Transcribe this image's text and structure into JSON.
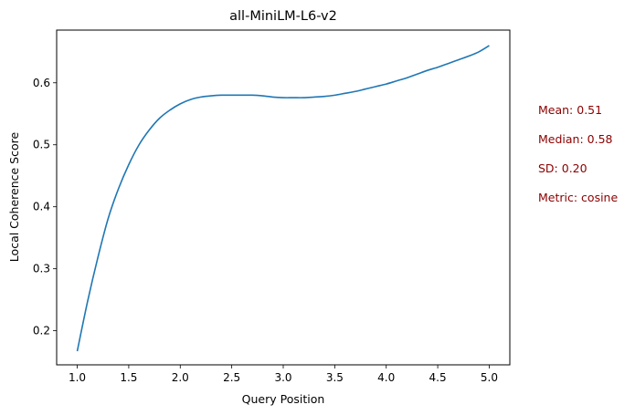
{
  "chart_data": {
    "type": "line",
    "title": "all-MiniLM-L6-v2",
    "xlabel": "Query Position",
    "ylabel": "Local Coherence Score",
    "xlim": [
      0.8,
      5.2
    ],
    "ylim": [
      0.145,
      0.685
    ],
    "xticks": [
      "1.0",
      "1.5",
      "2.0",
      "2.5",
      "3.0",
      "3.5",
      "4.0",
      "4.5",
      "5.0"
    ],
    "yticks": [
      "0.2",
      "0.3",
      "0.4",
      "0.5",
      "0.6"
    ],
    "grid": false,
    "line_color": "#1f77b4",
    "series": [
      {
        "x": [
          1.0,
          1.1,
          1.2,
          1.3,
          1.4,
          1.5,
          1.6,
          1.7,
          1.8,
          1.9,
          2.0,
          2.1,
          2.2,
          2.3,
          2.4,
          2.5,
          2.6,
          2.7,
          2.8,
          2.9,
          3.0,
          3.1,
          3.2,
          3.3,
          3.4,
          3.5,
          3.6,
          3.7,
          3.8,
          3.9,
          4.0,
          4.1,
          4.2,
          4.3,
          4.4,
          4.5,
          4.6,
          4.7,
          4.8,
          4.9,
          5.0
        ],
        "values": [
          0.167,
          0.247,
          0.318,
          0.381,
          0.429,
          0.468,
          0.5,
          0.524,
          0.543,
          0.556,
          0.566,
          0.573,
          0.577,
          0.579,
          0.58,
          0.58,
          0.58,
          0.58,
          0.579,
          0.577,
          0.576,
          0.576,
          0.576,
          0.577,
          0.578,
          0.58,
          0.583,
          0.586,
          0.59,
          0.594,
          0.598,
          0.603,
          0.608,
          0.614,
          0.62,
          0.625,
          0.631,
          0.637,
          0.643,
          0.65,
          0.66
        ]
      }
    ]
  },
  "stats": {
    "color": "#8b0000",
    "mean": "Mean: 0.51",
    "median": "Median: 0.58",
    "sd": "SD: 0.20",
    "metric": "Metric: cosine"
  }
}
